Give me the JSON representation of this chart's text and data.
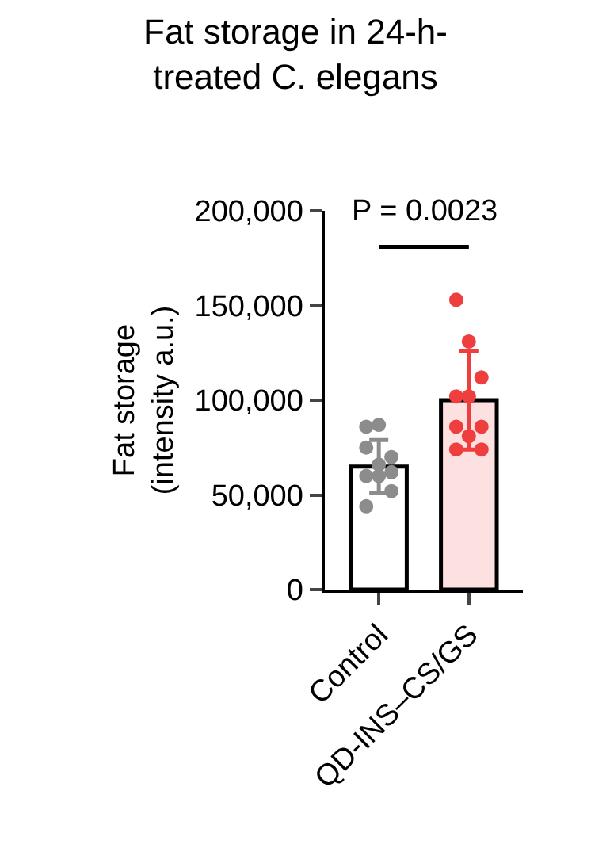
{
  "chart_data": {
    "type": "bar",
    "title": "Fat storage in 24-h-treated C. elegans",
    "ylabel": "Fat storage (intensity a.u.)",
    "categories": [
      "Control",
      "QD-INS–CS/GS"
    ],
    "series": [
      {
        "colors": [
          "#ffffff",
          "#fde0e0"
        ],
        "values": [
          65000,
          100000
        ],
        "errors": [
          14000,
          26000
        ]
      },
      {
        "type": "scatter",
        "color": "#8c8c8c",
        "x": [
          "Control",
          "Control",
          "Control",
          "Control",
          "Control",
          "Control",
          "Control",
          "Control",
          "Control",
          "Control"
        ],
        "values": [
          86000,
          87000,
          70000,
          75000,
          66000,
          62000,
          60000,
          60000,
          52000,
          44000
        ]
      },
      {
        "type": "scatter",
        "color": "#ee3e3e",
        "x": [
          "QD-INS–CS/GS",
          "QD-INS–CS/GS",
          "QD-INS–CS/GS",
          "QD-INS–CS/GS",
          "QD-INS–CS/GS",
          "QD-INS–CS/GS",
          "QD-INS–CS/GS",
          "QD-INS–CS/GS",
          "QD-INS–CS/GS",
          "QD-INS–CS/GS"
        ],
        "values": [
          153000,
          131000,
          112000,
          102000,
          102000,
          86000,
          86000,
          81000,
          74000,
          74000
        ]
      }
    ],
    "ylim": [
      0,
      200000
    ],
    "yticks": [
      {
        "value": 0,
        "label": "0"
      },
      {
        "value": 50000,
        "label": "50,000"
      },
      {
        "value": 100000,
        "label": "100,000"
      },
      {
        "value": 150000,
        "label": "150,000"
      },
      {
        "value": 200000,
        "label": "200,000"
      }
    ],
    "annotations": [
      "P = 0.0023"
    ],
    "marker": "circle",
    "grid": false
  }
}
